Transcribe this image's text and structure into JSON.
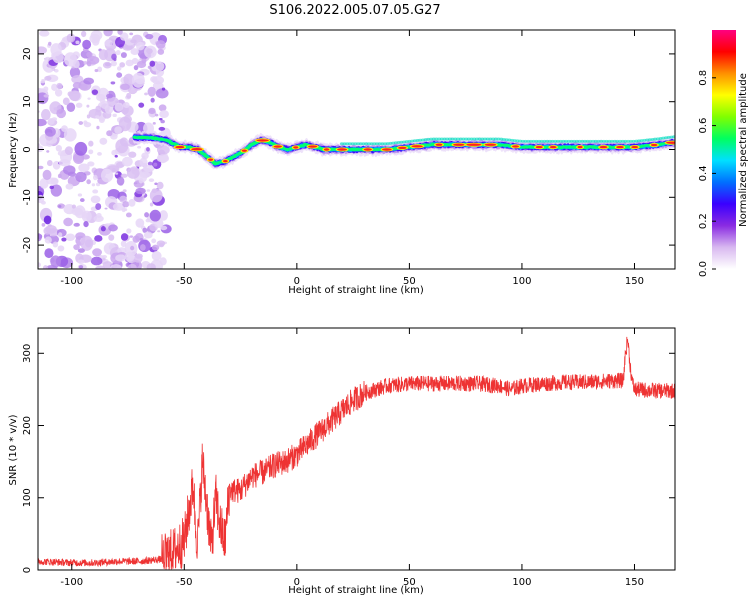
{
  "figure": {
    "title": "S106.2022.005.07.05.G27"
  },
  "chart_data": [
    {
      "type": "heatmap",
      "xlabel": "Height of straight line (km)",
      "ylabel": "Frequency (Hz)",
      "xlim": [
        -115,
        168
      ],
      "ylim": [
        -25,
        25
      ],
      "x_ticks": [
        -100,
        -50,
        0,
        50,
        100,
        150
      ],
      "y_ticks": [
        -20,
        -10,
        0,
        10,
        20
      ],
      "colorbar": {
        "label": "Normalized spectral amplitude",
        "range": [
          0,
          1
        ],
        "ticks": [
          "0.0",
          "0.2",
          "0.4",
          "0.6",
          "0.8"
        ],
        "colormap": [
          "#ffffff",
          "#d8b8f0",
          "#8a2be2",
          "#3a00ff",
          "#0070ff",
          "#00e0ff",
          "#00ff60",
          "#80ff00",
          "#ffff00",
          "#ff9000",
          "#ff0000",
          "#ff0080"
        ]
      },
      "ridge": {
        "height_km": [
          -72,
          -65,
          -58,
          -52,
          -48,
          -44,
          -40,
          -36,
          -32,
          -28,
          -24,
          -20,
          -16,
          -12,
          -8,
          -4,
          0,
          4,
          8,
          12,
          20,
          30,
          40,
          50,
          60,
          70,
          80,
          90,
          100,
          110,
          120,
          130,
          140,
          150,
          160,
          168
        ],
        "frequency_hz": [
          2.5,
          2.5,
          2,
          0.5,
          0.5,
          0,
          -1.5,
          -3,
          -2.5,
          -1.5,
          -0.5,
          1,
          2,
          1.5,
          0.5,
          0,
          0.5,
          1,
          0.5,
          0,
          0,
          0,
          0,
          0.5,
          1,
          1,
          1,
          1,
          0.5,
          0.5,
          0.5,
          0.5,
          0.5,
          0.5,
          1,
          1.5
        ]
      },
      "noise_region_km": [
        -115,
        -70
      ]
    },
    {
      "type": "line",
      "xlabel": "Height of straight line (km)",
      "ylabel": "SNR (10 * v/v)",
      "xlim": [
        -115,
        168
      ],
      "ylim": [
        0,
        335
      ],
      "x_ticks": [
        -100,
        -50,
        0,
        50,
        100,
        150
      ],
      "y_ticks": [
        0,
        100,
        200,
        300
      ],
      "series": [
        {
          "color": "#ee3333",
          "x": [
            -115,
            -100,
            -90,
            -80,
            -70,
            -60,
            -55,
            -50,
            -48,
            -46,
            -45,
            -44,
            -42,
            -40,
            -38,
            -36,
            -34,
            -32,
            -30,
            -25,
            -20,
            -15,
            -10,
            -5,
            0,
            5,
            10,
            15,
            20,
            25,
            30,
            35,
            40,
            50,
            60,
            70,
            80,
            90,
            95,
            100,
            110,
            120,
            130,
            140,
            145,
            146,
            147,
            148,
            149,
            150,
            160,
            168
          ],
          "y": [
            12,
            10,
            10,
            12,
            12,
            15,
            25,
            40,
            80,
            120,
            60,
            40,
            150,
            90,
            30,
            100,
            60,
            40,
            110,
            110,
            130,
            135,
            145,
            150,
            160,
            175,
            190,
            205,
            220,
            235,
            245,
            250,
            255,
            258,
            258,
            258,
            258,
            255,
            250,
            255,
            258,
            260,
            260,
            262,
            262,
            300,
            320,
            285,
            260,
            250,
            248,
            248
          ]
        }
      ]
    }
  ]
}
